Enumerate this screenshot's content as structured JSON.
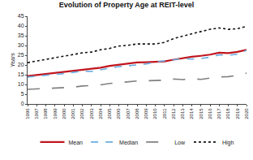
{
  "chart_data": {
    "type": "line",
    "title": "Evolution of Property Age at REIT-level",
    "y_label": "Years",
    "categories": [
      "1996",
      "1997",
      "1998",
      "1999",
      "2000",
      "2001",
      "2002",
      "2003",
      "2004",
      "2005",
      "2006",
      "2007",
      "2008",
      "2009",
      "2010",
      "2011",
      "2012",
      "2013",
      "2014",
      "2015",
      "2016",
      "2017",
      "2018",
      "2019",
      "2020"
    ],
    "series": [
      {
        "name": "Mean",
        "color": "#c0161e",
        "line_style": "solid",
        "values": [
          14.3,
          14.8,
          15.3,
          15.8,
          16.3,
          16.9,
          17.5,
          17.8,
          18.6,
          19.5,
          20.2,
          20.8,
          21.3,
          21.4,
          21.5,
          21.8,
          22.7,
          23.6,
          24.2,
          24.7,
          25.3,
          26.3,
          26.1,
          26.7,
          27.8
        ]
      },
      {
        "name": "Median",
        "color": "#6aaee0",
        "line_style": "dash",
        "values": [
          13.8,
          14.2,
          14.7,
          15.2,
          15.6,
          16.2,
          16.8,
          16.7,
          17.5,
          18.5,
          19.2,
          19.6,
          20.0,
          20.5,
          21.5,
          22.0,
          22.5,
          23.3,
          23.0,
          23.3,
          24.0,
          25.2,
          25.0,
          25.5,
          27.5
        ]
      },
      {
        "name": "Low",
        "color": "#808080",
        "line_style": "longdash",
        "values": [
          7.5,
          7.7,
          8.0,
          8.2,
          8.3,
          8.6,
          9.2,
          9.4,
          9.8,
          10.5,
          11.0,
          11.6,
          11.8,
          11.9,
          12.0,
          12.2,
          12.8,
          12.5,
          13.0,
          12.6,
          13.3,
          13.9,
          14.0,
          14.7,
          15.8
        ]
      },
      {
        "name": "High",
        "color": "#111111",
        "line_style": "dot",
        "values": [
          21.2,
          22.0,
          22.9,
          23.6,
          24.5,
          25.4,
          26.2,
          26.6,
          27.8,
          28.5,
          29.7,
          30.1,
          30.8,
          30.8,
          30.8,
          31.6,
          33.5,
          34.8,
          36.0,
          37.0,
          38.3,
          39.0,
          38.3,
          38.6,
          39.8
        ]
      }
    ],
    "ylim": [
      0,
      45
    ],
    "yticks": [
      0,
      5,
      10,
      15,
      20,
      25,
      30,
      35,
      40,
      45
    ],
    "grid": false,
    "legend": "bottom"
  }
}
